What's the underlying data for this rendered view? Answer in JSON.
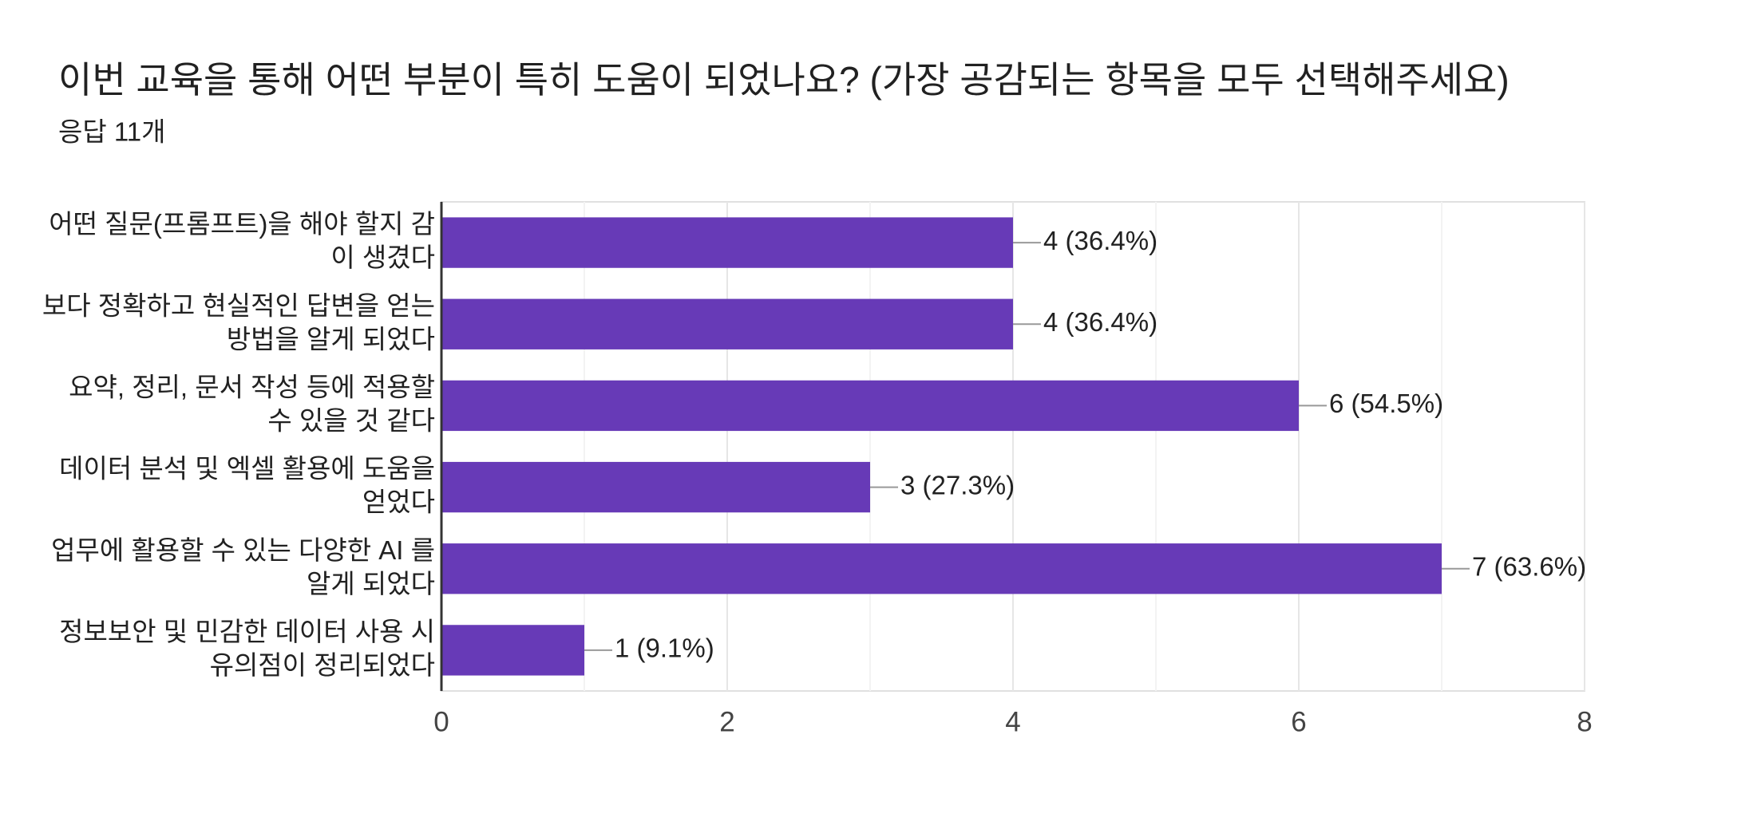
{
  "chart_data": {
    "type": "hbar",
    "title": "이번 교육을 통해 어떤 부분이 특히 도움이 되었나요? (가장 공감되는 항목을 모두 선택해주세요)",
    "subtitle": "응답 11개",
    "categories": [
      [
        "어떤 질문(프롬프트)을 해야 할지 감",
        "이 생겼다"
      ],
      [
        "보다 정확하고 현실적인 답변을 얻는",
        "방법을 알게 되었다"
      ],
      [
        "요약, 정리, 문서 작성 등에 적용할",
        "수 있을 것 같다"
      ],
      [
        "데이터 분석 및 엑셀 활용에 도움을",
        "얻었다"
      ],
      [
        "업무에 활용할 수 있는 다양한 AI 를",
        "알게 되었다"
      ],
      [
        "정보보안 및 민감한 데이터 사용 시",
        "유의점이 정리되었다"
      ]
    ],
    "values": [
      4,
      4,
      6,
      3,
      7,
      1
    ],
    "value_labels": [
      "4 (36.4%)",
      "4 (36.4%)",
      "6 (54.5%)",
      "3 (27.3%)",
      "7 (63.6%)",
      "1 (9.1%)"
    ],
    "color": "#673ab7",
    "xlim": [
      0,
      8
    ],
    "xticks": [
      0,
      2,
      4,
      6,
      8
    ],
    "grid": true
  }
}
